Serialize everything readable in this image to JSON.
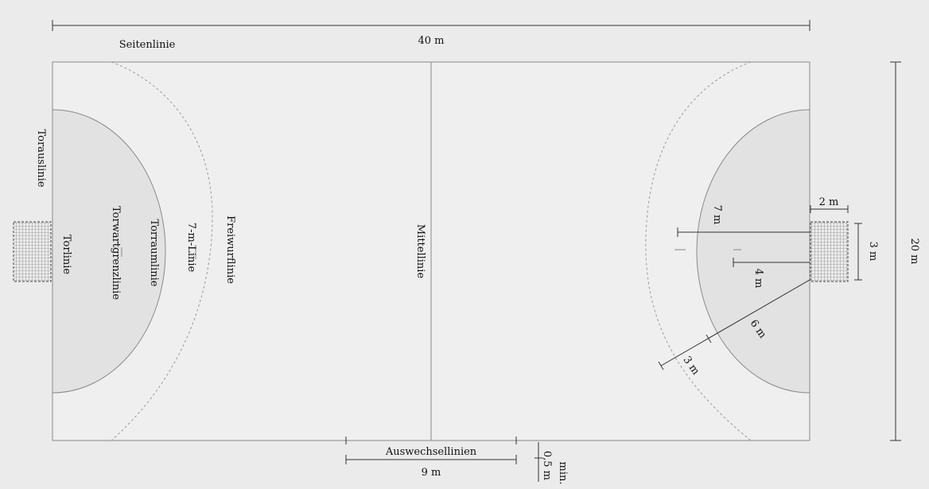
{
  "court_labels": {
    "seitenlinie": "Seitenlinie",
    "torauslinie": "Torauslinie",
    "torlinie": "Torlinie",
    "torwartgrenzlinie": "Torwartgrenzlinie",
    "torraumlinie": "Torraumlinie",
    "siebenmeterlinie": "7-m-Linie",
    "freiwurflinie": "Freiwurflinie",
    "mittellinie": "Mittellinie",
    "auswechsellinien": "Auswechsellinien"
  },
  "dimensions": {
    "length": "40 m",
    "width": "20 m",
    "goal_depth": "2 m",
    "goal_width": "3 m",
    "seven_m": "7 m",
    "four_m": "4 m",
    "six_m": "6 m",
    "three_m": "3 m",
    "substitution_zone": "9 m",
    "min_half_m": "0,5 m",
    "min": "min."
  },
  "colors": {
    "background": "#ebebeb",
    "court": "#efefef",
    "goal_area": "#e2e2e2"
  }
}
